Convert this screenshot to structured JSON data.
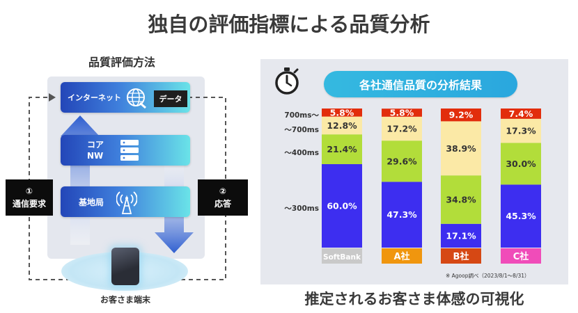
{
  "main_title": "独自の評価指標による品質分析",
  "left": {
    "title": "品質評価方法",
    "layer_internet": "インターネット",
    "data_label": "データ",
    "layer_core_line1": "コア",
    "layer_core_line2": "NW",
    "layer_base": "基地局",
    "request_num": "①",
    "request_label": "通信要求",
    "response_num": "②",
    "response_label": "応答",
    "terminal_label": "お客さま端末",
    "icons": [
      "globe-icon",
      "server-icon",
      "antenna-icon",
      "smartphone-icon",
      "stopwatch-icon"
    ]
  },
  "right": {
    "bottom_title": "推定されるお客さま体感の可視化",
    "source_note": "※ Agoop調べ（2023/8/1～8/31）"
  },
  "chart_data": {
    "type": "bar",
    "stacked": true,
    "percent": true,
    "title": "各社通信品質の分析結果",
    "categories": [
      "SoftBank",
      "A社",
      "B社",
      "C社"
    ],
    "category_colors": [
      "#c9c9c9",
      "#f0960e",
      "#d64814",
      "#f04cb9"
    ],
    "series": [
      {
        "name": "～300ms",
        "color": "#3d2ef0",
        "values": [
          60.0,
          47.3,
          17.1,
          45.3
        ]
      },
      {
        "name": "～400ms",
        "color": "#b2dd3a",
        "values": [
          21.4,
          29.6,
          34.8,
          30.0
        ]
      },
      {
        "name": "～700ms",
        "color": "#fbe9a6",
        "values": [
          12.8,
          17.2,
          38.9,
          17.3
        ]
      },
      {
        "name": "700ms～",
        "color": "#e22d0c",
        "values": [
          5.8,
          5.8,
          9.2,
          7.4
        ]
      }
    ],
    "value_labels": [
      [
        "60.0%",
        "21.4%",
        "12.8%",
        "5.8%"
      ],
      [
        "47.3%",
        "29.6%",
        "17.2%",
        "5.8%"
      ],
      [
        "17.1%",
        "34.8%",
        "38.9%",
        "9.2%"
      ],
      [
        "45.3%",
        "30.0%",
        "17.3%",
        "7.4%"
      ]
    ],
    "tier_labels_order_top_to_bottom": [
      "700ms～",
      "～700ms",
      "～400ms",
      "～300ms"
    ],
    "ylim": [
      0,
      100
    ],
    "grid": false,
    "legend": "left-side tier labels"
  }
}
